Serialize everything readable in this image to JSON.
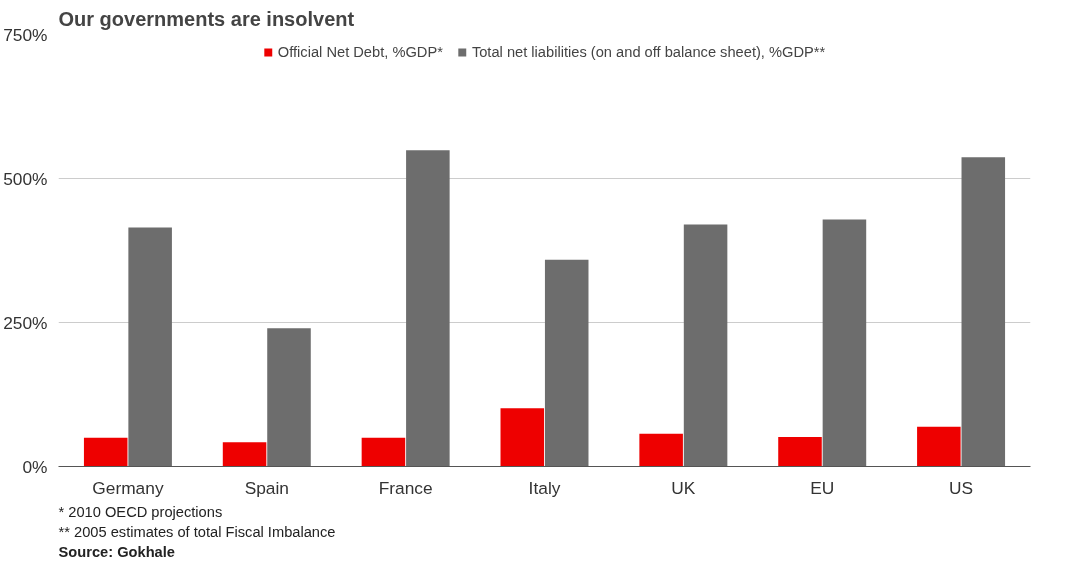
{
  "chart_data": {
    "type": "bar",
    "title": "Our governments are insolvent",
    "categories": [
      "Germany",
      "Spain",
      "France",
      "Italy",
      "UK",
      "EU",
      "US"
    ],
    "series": [
      {
        "name": "Official Net Debt, %GDP*",
        "color": "#ee0000",
        "values": [
          50,
          42,
          50,
          101,
          57,
          51,
          69
        ]
      },
      {
        "name": "Total net liabilities (on and off balance sheet), %GDP**",
        "color": "#6d6d6d",
        "values": [
          415,
          240,
          549,
          359,
          420,
          429,
          537
        ]
      }
    ],
    "ylim": [
      0,
      750
    ],
    "yticks": [
      {
        "value": 0,
        "label": "0%"
      },
      {
        "value": 250,
        "label": "250%"
      },
      {
        "value": 500,
        "label": "500%"
      },
      {
        "value": 750,
        "label": "750%"
      }
    ],
    "grid": "y",
    "legend": "top",
    "annotations": [
      "* 2010 OECD projections",
      "** 2005 estimates of total Fiscal Imbalance",
      "Source: Gokhale"
    ]
  }
}
